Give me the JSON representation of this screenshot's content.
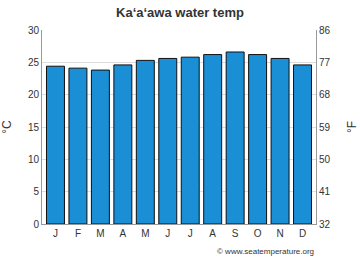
{
  "chart_data": {
    "type": "bar",
    "title": "Ka‘a‘awa water temp",
    "categories": [
      "J",
      "F",
      "M",
      "A",
      "M",
      "J",
      "J",
      "A",
      "S",
      "O",
      "N",
      "D"
    ],
    "values": [
      24.4,
      24.1,
      23.8,
      24.6,
      25.3,
      25.6,
      25.8,
      26.2,
      26.6,
      26.2,
      25.6,
      24.6
    ],
    "color": "#1a8fd6",
    "y_label": "°C",
    "y2_label": "°F",
    "ylim": [
      0,
      30
    ],
    "yticks": [
      0,
      5,
      10,
      15,
      20,
      25,
      30
    ],
    "y2lim": [
      32,
      86
    ],
    "y2ticks": [
      32,
      41,
      50,
      59,
      68,
      77,
      86
    ],
    "grid": true,
    "source": "© www.seatemperature.org"
  }
}
